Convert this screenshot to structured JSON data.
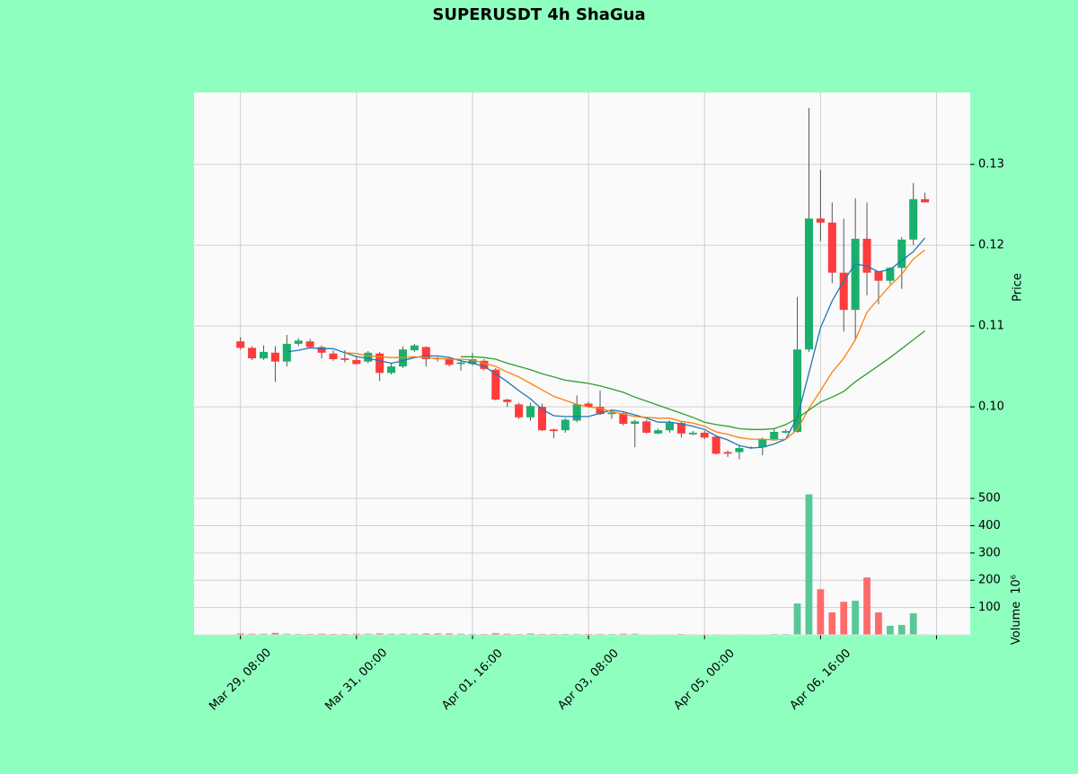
{
  "chart_data": {
    "type": "candlestick",
    "title": "SUPERUSDT 4h ShaGua",
    "categories": [
      "Mar 29, 08:00",
      null,
      null,
      null,
      null,
      null,
      null,
      null,
      null,
      null,
      "Mar 31, 00:00",
      null,
      null,
      null,
      null,
      null,
      null,
      null,
      null,
      null,
      "Apr 01, 16:00",
      null,
      null,
      null,
      null,
      null,
      null,
      null,
      null,
      null,
      "Apr 03, 08:00",
      null,
      null,
      null,
      null,
      null,
      null,
      null,
      null,
      null,
      "Apr 05, 00:00",
      null,
      null,
      null,
      null,
      null,
      null,
      null,
      null,
      null,
      "Apr 06, 16:00",
      null,
      null,
      null,
      null,
      null,
      null,
      null,
      null,
      null
    ],
    "open": [
      0.1081,
      0.1073,
      0.106,
      0.1067,
      0.1056,
      0.1078,
      0.1081,
      0.1074,
      0.1066,
      0.106,
      0.1058,
      0.1056,
      0.1066,
      0.1042,
      0.105,
      0.107,
      0.1074,
      0.106,
      0.1059,
      0.1053,
      0.1053,
      0.1057,
      0.1046,
      0.1009,
      0.1003,
      0.0987,
      0.1,
      0.0972,
      0.0971,
      0.0983,
      0.1004,
      0.1,
      0.0991,
      0.0992,
      0.0979,
      0.0982,
      0.0967,
      0.0971,
      0.098,
      0.0966,
      0.0968,
      0.0963,
      0.0944,
      0.0944,
      0.0949,
      0.095,
      0.096,
      0.0968,
      0.0969,
      0.1071,
      0.1233,
      0.1228,
      0.1166,
      0.112,
      0.1208,
      0.1168,
      0.1156,
      0.1172,
      0.1207,
      0.1257
    ],
    "high": [
      0.1086,
      0.1075,
      0.1076,
      0.1075,
      0.1089,
      0.1085,
      0.1084,
      0.1076,
      0.107,
      0.107,
      0.1063,
      0.1069,
      0.1068,
      0.1054,
      0.1075,
      0.1078,
      0.1075,
      0.1062,
      0.1061,
      0.1058,
      0.1067,
      0.1059,
      0.1048,
      0.101,
      0.1005,
      0.1005,
      0.1004,
      0.0973,
      0.0986,
      0.1014,
      0.1006,
      0.102,
      0.0995,
      0.0994,
      0.0984,
      0.0984,
      0.0973,
      0.0983,
      0.0982,
      0.097,
      0.097,
      0.0964,
      0.0946,
      0.0952,
      0.0951,
      0.0962,
      0.0974,
      0.0972,
      0.1136,
      0.137,
      0.1293,
      0.1253,
      0.1233,
      0.1258,
      0.1253,
      0.1168,
      0.1173,
      0.121,
      0.1277,
      0.1265
    ],
    "low": [
      0.1071,
      0.1058,
      0.1058,
      0.1031,
      0.105,
      0.1075,
      0.1072,
      0.106,
      0.1057,
      0.1055,
      0.1052,
      0.1054,
      0.1032,
      0.104,
      0.1048,
      0.1068,
      0.105,
      0.1056,
      0.105,
      0.1045,
      0.1051,
      0.1045,
      0.1008,
      0.1,
      0.0985,
      0.0983,
      0.097,
      0.0961,
      0.0968,
      0.0981,
      0.0999,
      0.099,
      0.0985,
      0.0977,
      0.095,
      0.0967,
      0.0966,
      0.0968,
      0.0962,
      0.0965,
      0.096,
      0.0941,
      0.0938,
      0.0935,
      0.0948,
      0.094,
      0.0958,
      0.0967,
      0.0968,
      0.1068,
      0.1205,
      0.1153,
      0.1093,
      0.1082,
      0.1138,
      0.1127,
      0.1152,
      0.1146,
      0.12,
      0.1253
    ],
    "close": [
      0.1073,
      0.106,
      0.1068,
      0.1056,
      0.1078,
      0.1082,
      0.1074,
      0.1067,
      0.1059,
      0.1058,
      0.1053,
      0.1067,
      0.1042,
      0.105,
      0.1071,
      0.1076,
      0.1059,
      0.1059,
      0.1052,
      0.1055,
      0.1059,
      0.1047,
      0.1009,
      0.1006,
      0.0987,
      0.1001,
      0.0971,
      0.097,
      0.0984,
      0.1003,
      0.1,
      0.0991,
      0.0993,
      0.0979,
      0.0982,
      0.0968,
      0.0971,
      0.098,
      0.0967,
      0.0968,
      0.0962,
      0.0942,
      0.0942,
      0.0949,
      0.095,
      0.096,
      0.0969,
      0.097,
      0.1071,
      0.1233,
      0.1228,
      0.1166,
      0.112,
      0.1208,
      0.1166,
      0.1156,
      0.1172,
      0.1207,
      0.1257,
      0.1253
    ],
    "up_color": "#1aaf6c",
    "down_color": "#ff3b3b",
    "ma_lines": [
      {
        "color": "#1f77b4",
        "values": [
          null,
          null,
          null,
          null,
          0.1068,
          0.107,
          0.1073,
          0.1072,
          0.1072,
          0.1067,
          0.1062,
          0.106,
          0.1057,
          0.1054,
          0.1057,
          0.1061,
          0.1063,
          0.1063,
          0.1061,
          0.1057,
          0.1054,
          0.105,
          0.1041,
          0.1031,
          0.102,
          0.101,
          0.0997,
          0.0989,
          0.0988,
          0.0988,
          0.0988,
          0.0992,
          0.0996,
          0.0994,
          0.099,
          0.0986,
          0.0981,
          0.0981,
          0.0979,
          0.0976,
          0.0972,
          0.0964,
          0.0959,
          0.0952,
          0.0949,
          0.095,
          0.0954,
          0.096,
          0.0987,
          0.1042,
          0.1098,
          0.1131,
          0.1156,
          0.1177,
          0.1174,
          0.1167,
          0.117,
          0.1181,
          0.1192,
          0.1209
        ]
      },
      {
        "color": "#ff7f0e",
        "values": [
          null,
          null,
          null,
          null,
          null,
          null,
          null,
          null,
          null,
          0.1067,
          0.1066,
          0.1063,
          0.1062,
          0.1061,
          0.1061,
          0.1062,
          0.1061,
          0.106,
          0.1059,
          0.1059,
          0.1058,
          0.1054,
          0.105,
          0.1043,
          0.1037,
          0.1029,
          0.1021,
          0.1013,
          0.1008,
          0.1003,
          0.1,
          0.0998,
          0.0994,
          0.0991,
          0.0988,
          0.0987,
          0.0986,
          0.0986,
          0.0982,
          0.098,
          0.0976,
          0.0969,
          0.0966,
          0.0962,
          0.096,
          0.096,
          0.0959,
          0.096,
          0.0972,
          0.0998,
          0.102,
          0.1043,
          0.106,
          0.1083,
          0.1117,
          0.1134,
          0.115,
          0.1164,
          0.1183,
          0.1194
        ]
      },
      {
        "color": "#2ca02c",
        "values": [
          null,
          null,
          null,
          null,
          null,
          null,
          null,
          null,
          null,
          null,
          null,
          null,
          null,
          null,
          null,
          null,
          null,
          null,
          null,
          0.1062,
          0.1062,
          0.1061,
          0.1059,
          0.1054,
          0.105,
          0.1046,
          0.1041,
          0.1037,
          0.1033,
          0.1031,
          0.1029,
          0.1026,
          0.1022,
          0.1018,
          0.1012,
          0.1007,
          0.1002,
          0.0997,
          0.0992,
          0.0987,
          0.0981,
          0.0978,
          0.0976,
          0.0973,
          0.0972,
          0.0972,
          0.0973,
          0.0978,
          0.0986,
          0.0996,
          0.1006,
          0.1012,
          0.1019,
          0.1031,
          0.1041,
          0.1051,
          0.1061,
          0.1072,
          0.1083,
          0.1094
        ]
      }
    ],
    "xlim": [
      -4.0,
      62.9
    ],
    "xticks": [
      0,
      10,
      20,
      30,
      40,
      50,
      60
    ],
    "ylim": [
      0.0909,
      0.1389
    ],
    "yticks": [
      {
        "value": 0.1,
        "label": "0.10"
      },
      {
        "value": 0.11,
        "label": "0.11"
      },
      {
        "value": 0.12,
        "label": "0.12"
      },
      {
        "value": 0.13,
        "label": "0.13"
      }
    ],
    "ylabel": "Price",
    "grid": true,
    "volume": {
      "values": [
        5,
        4,
        4,
        7,
        4,
        3,
        3,
        4,
        3,
        3,
        4,
        4,
        5,
        4,
        4,
        4,
        5,
        5,
        5,
        4,
        3,
        3,
        6,
        4,
        3,
        5,
        3,
        3,
        3,
        3,
        3,
        3,
        3,
        4,
        4,
        2,
        2,
        2,
        3,
        2,
        2,
        2,
        2,
        2,
        2,
        2,
        3,
        3,
        115,
        515,
        167,
        82,
        121,
        125,
        210,
        82,
        33,
        36,
        79,
        2
      ],
      "ylim": [
        0,
        566
      ],
      "yticks": [
        100,
        200,
        300,
        400,
        500
      ],
      "label": "Volume",
      "exponent_label": "10⁶",
      "up_color": "#58c896",
      "down_color": "#ff6b6b"
    }
  }
}
